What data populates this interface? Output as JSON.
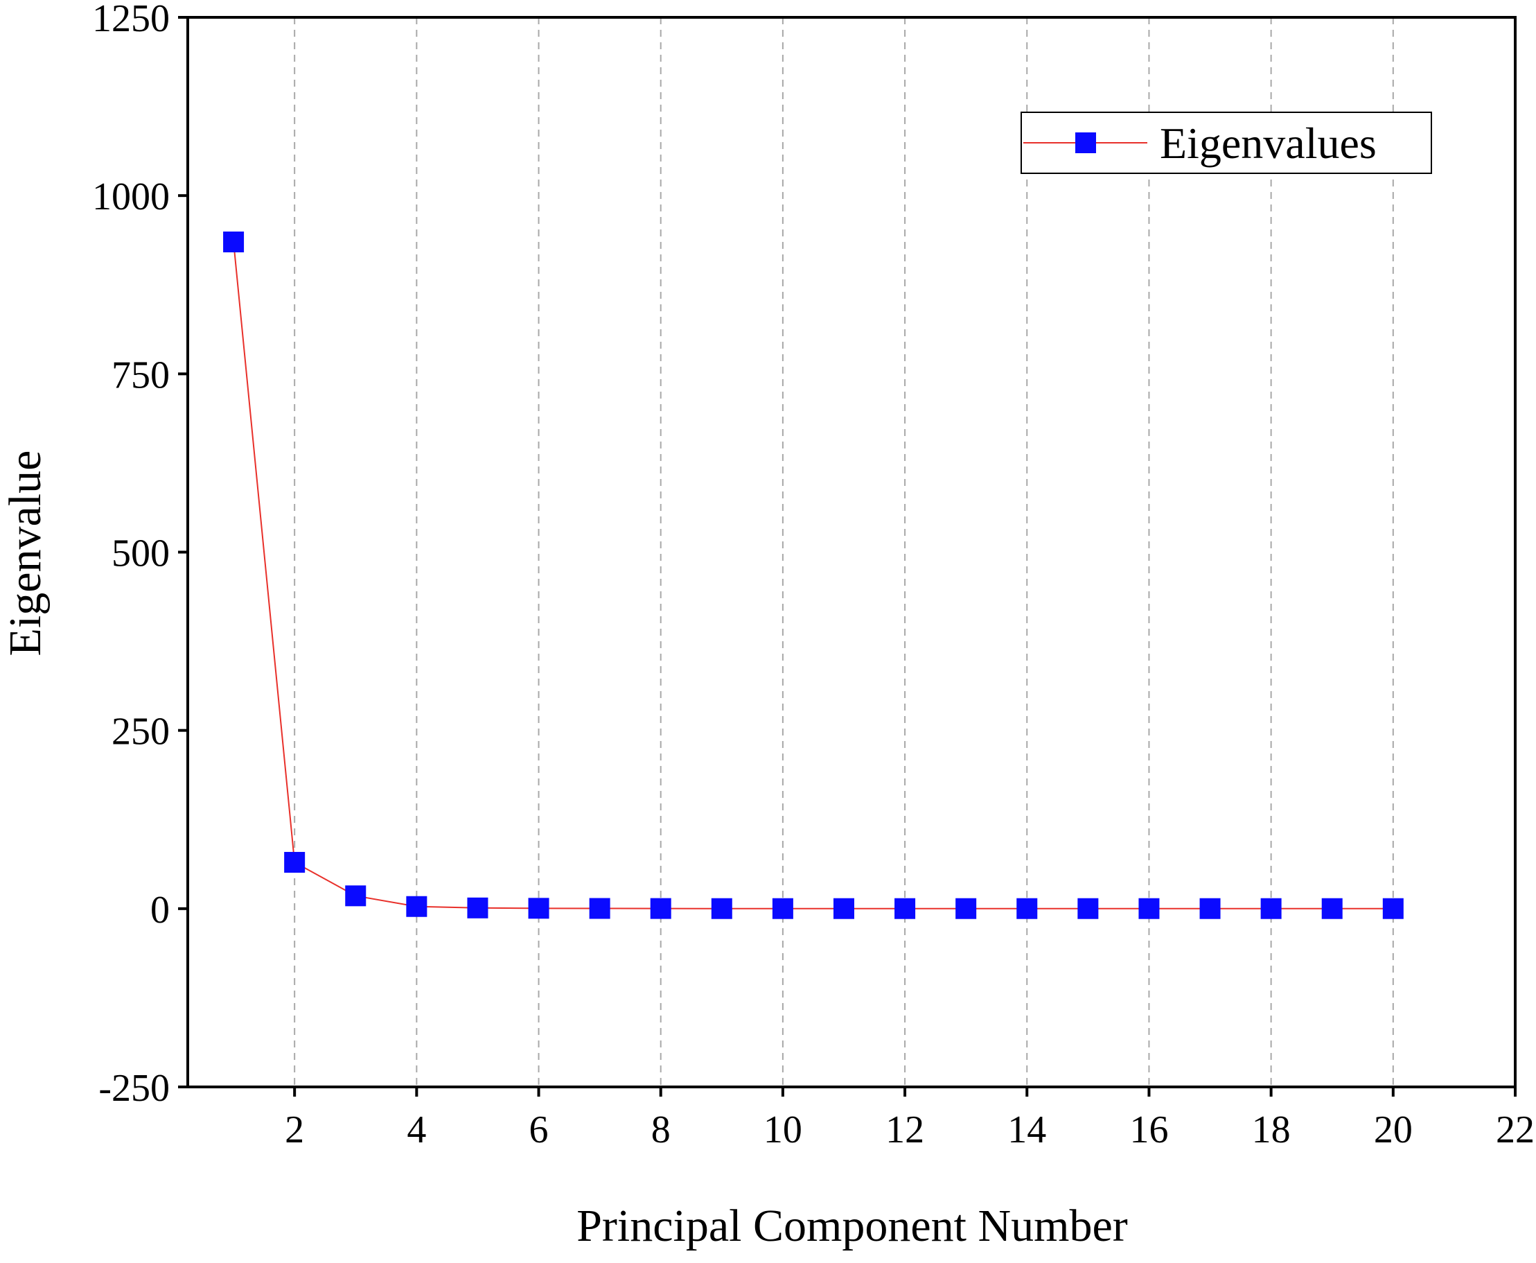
{
  "chart_data": {
    "type": "line",
    "title": "",
    "xlabel": "Principal Component Number",
    "ylabel": "Eigenvalue",
    "xlim": [
      0.25,
      22
    ],
    "ylim": [
      -250,
      1250
    ],
    "x_ticks": [
      2,
      4,
      6,
      8,
      10,
      12,
      14,
      16,
      18,
      20,
      22
    ],
    "x_tick_labels": [
      "2",
      "4",
      "6",
      "8",
      "10",
      "12",
      "14",
      "16",
      "18",
      "20",
      "22"
    ],
    "y_ticks": [
      -250,
      0,
      250,
      500,
      750,
      1000,
      1250
    ],
    "y_tick_labels": [
      "-250",
      "0",
      "250",
      "500",
      "750",
      "1000",
      "1250"
    ],
    "grid": "vertical dashed",
    "legend_position": "top-right",
    "series": [
      {
        "name": "Eigenvalues",
        "line_color": "#e8302a",
        "marker_color": "#0a0aff",
        "marker": "square",
        "x": [
          1,
          2,
          3,
          4,
          5,
          6,
          7,
          8,
          9,
          10,
          11,
          12,
          13,
          14,
          15,
          16,
          17,
          18,
          19,
          20
        ],
        "y": [
          935,
          65,
          18,
          3,
          1,
          0.5,
          0.3,
          0.2,
          0.1,
          0.1,
          0.1,
          0.1,
          0.1,
          0.1,
          0.1,
          0.1,
          0.1,
          0.1,
          0.1,
          0.1
        ]
      }
    ]
  }
}
